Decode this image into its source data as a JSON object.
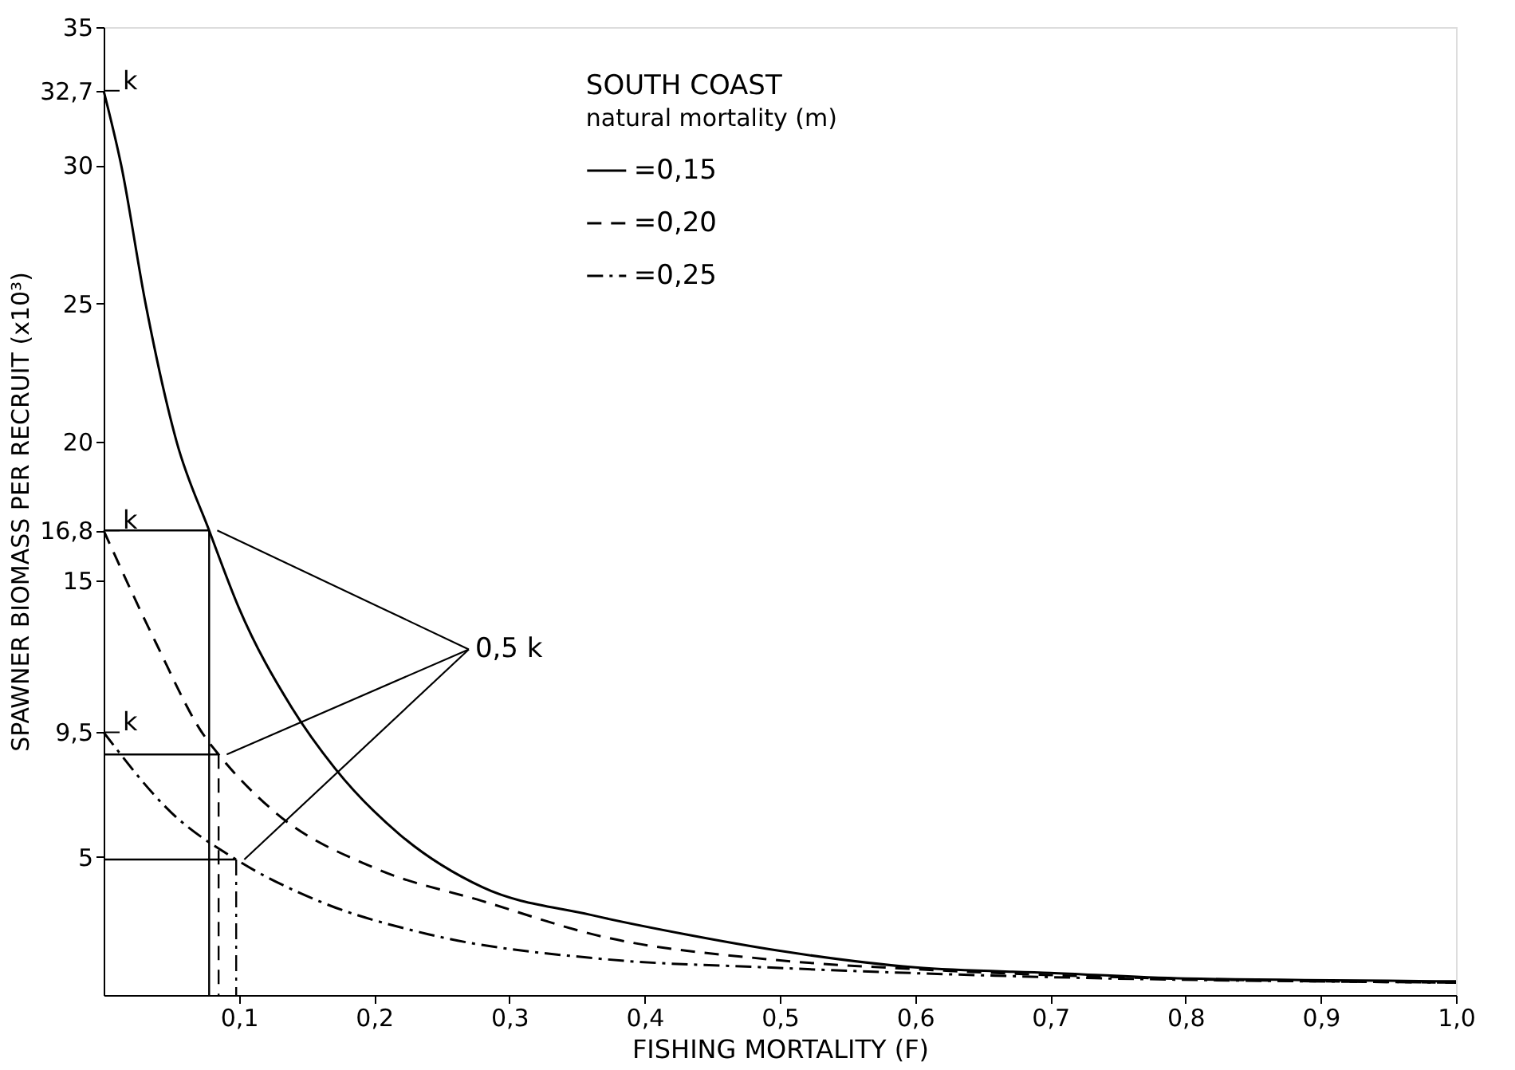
{
  "chart_data": {
    "type": "line",
    "title": "SOUTH COAST",
    "legend_title": "natural mortality (m)",
    "xlabel": "FISHING MORTALITY (F)",
    "ylabel": "SPAWNER BIOMASS PER RECRUIT (x10³)",
    "xlim": [
      0,
      1.0
    ],
    "ylim": [
      0,
      35
    ],
    "xticks": [
      {
        "value": 0.1,
        "label": "0,1"
      },
      {
        "value": 0.2,
        "label": "0,2"
      },
      {
        "value": 0.3,
        "label": "0,3"
      },
      {
        "value": 0.4,
        "label": "0,4"
      },
      {
        "value": 0.5,
        "label": "0,5"
      },
      {
        "value": 0.6,
        "label": "0,6"
      },
      {
        "value": 0.7,
        "label": "0,7"
      },
      {
        "value": 0.8,
        "label": "0,8"
      },
      {
        "value": 0.9,
        "label": "0,9"
      },
      {
        "value": 1.0,
        "label": "1,0"
      }
    ],
    "yticks": [
      5,
      {
        "value": 9.5,
        "label": "9,5"
      },
      15,
      {
        "value": 16.8,
        "label": "16,8"
      },
      20,
      25,
      30,
      {
        "value": 32.7,
        "label": "32,7"
      },
      35
    ],
    "grid": false,
    "legend": "top",
    "marker": "none",
    "series": [
      {
        "name": "=0,15",
        "color": "#000000",
        "line_style": "solid",
        "x": [
          0,
          0.013,
          0.031,
          0.054,
          0.078,
          0.1,
          0.139,
          0.171,
          0.219,
          0.28,
          0.36,
          0.43,
          0.5,
          0.6,
          0.7,
          0.8,
          1.0
        ],
        "values": [
          32.7,
          30,
          25,
          20,
          16.8,
          14,
          10.4,
          8.2,
          5.8,
          3.9,
          2.9,
          2.2,
          1.6,
          1.0,
          0.8,
          0.6,
          0.5
        ]
      },
      {
        "name": "=0,20",
        "color": "#000000",
        "line_style": "dashed",
        "x": [
          0,
          0.038,
          0.074,
          0.085,
          0.127,
          0.2,
          0.28,
          0.37,
          0.49,
          0.615,
          0.785,
          1.0
        ],
        "values": [
          16.8,
          12.8,
          9.4,
          8.7,
          6.6,
          4.6,
          3.4,
          2.1,
          1.3,
          0.9,
          0.6,
          0.45
        ]
      },
      {
        "name": "=0,25",
        "color": "#000000",
        "line_style": "dashdot",
        "x": [
          0,
          0.05,
          0.098,
          0.159,
          0.24,
          0.37,
          0.49,
          0.66,
          1.0
        ],
        "values": [
          9.5,
          6.6,
          4.9,
          3.4,
          2.2,
          1.3,
          1.0,
          0.7,
          0.45
        ]
      },
      {
        "color": "#000000",
        "line_style": "solid",
        "x": [
          0,
          0.078
        ],
        "values": [
          16.8,
          16.8
        ]
      },
      {
        "color": "#000000",
        "line_style": "solid",
        "x": [
          0.078,
          0.078
        ],
        "values": [
          16.8,
          0
        ]
      },
      {
        "color": "#000000",
        "line_style": "solid",
        "x": [
          0,
          0.085
        ],
        "values": [
          8.7,
          8.7
        ]
      },
      {
        "color": "#000000",
        "line_style": "dashed",
        "x": [
          0.085,
          0.085
        ],
        "values": [
          8.7,
          0
        ]
      },
      {
        "color": "#000000",
        "line_style": "solid",
        "x": [
          0,
          0.098
        ],
        "values": [
          4.9,
          4.9
        ]
      },
      {
        "color": "#000000",
        "line_style": "dashdot",
        "x": [
          0.098,
          0.098
        ],
        "values": [
          4.9,
          0
        ]
      }
    ],
    "annotations": [
      "k",
      "k",
      "k",
      {
        "text": "0,5 k",
        "x": 0.078,
        "y": 16.8
      }
    ]
  }
}
